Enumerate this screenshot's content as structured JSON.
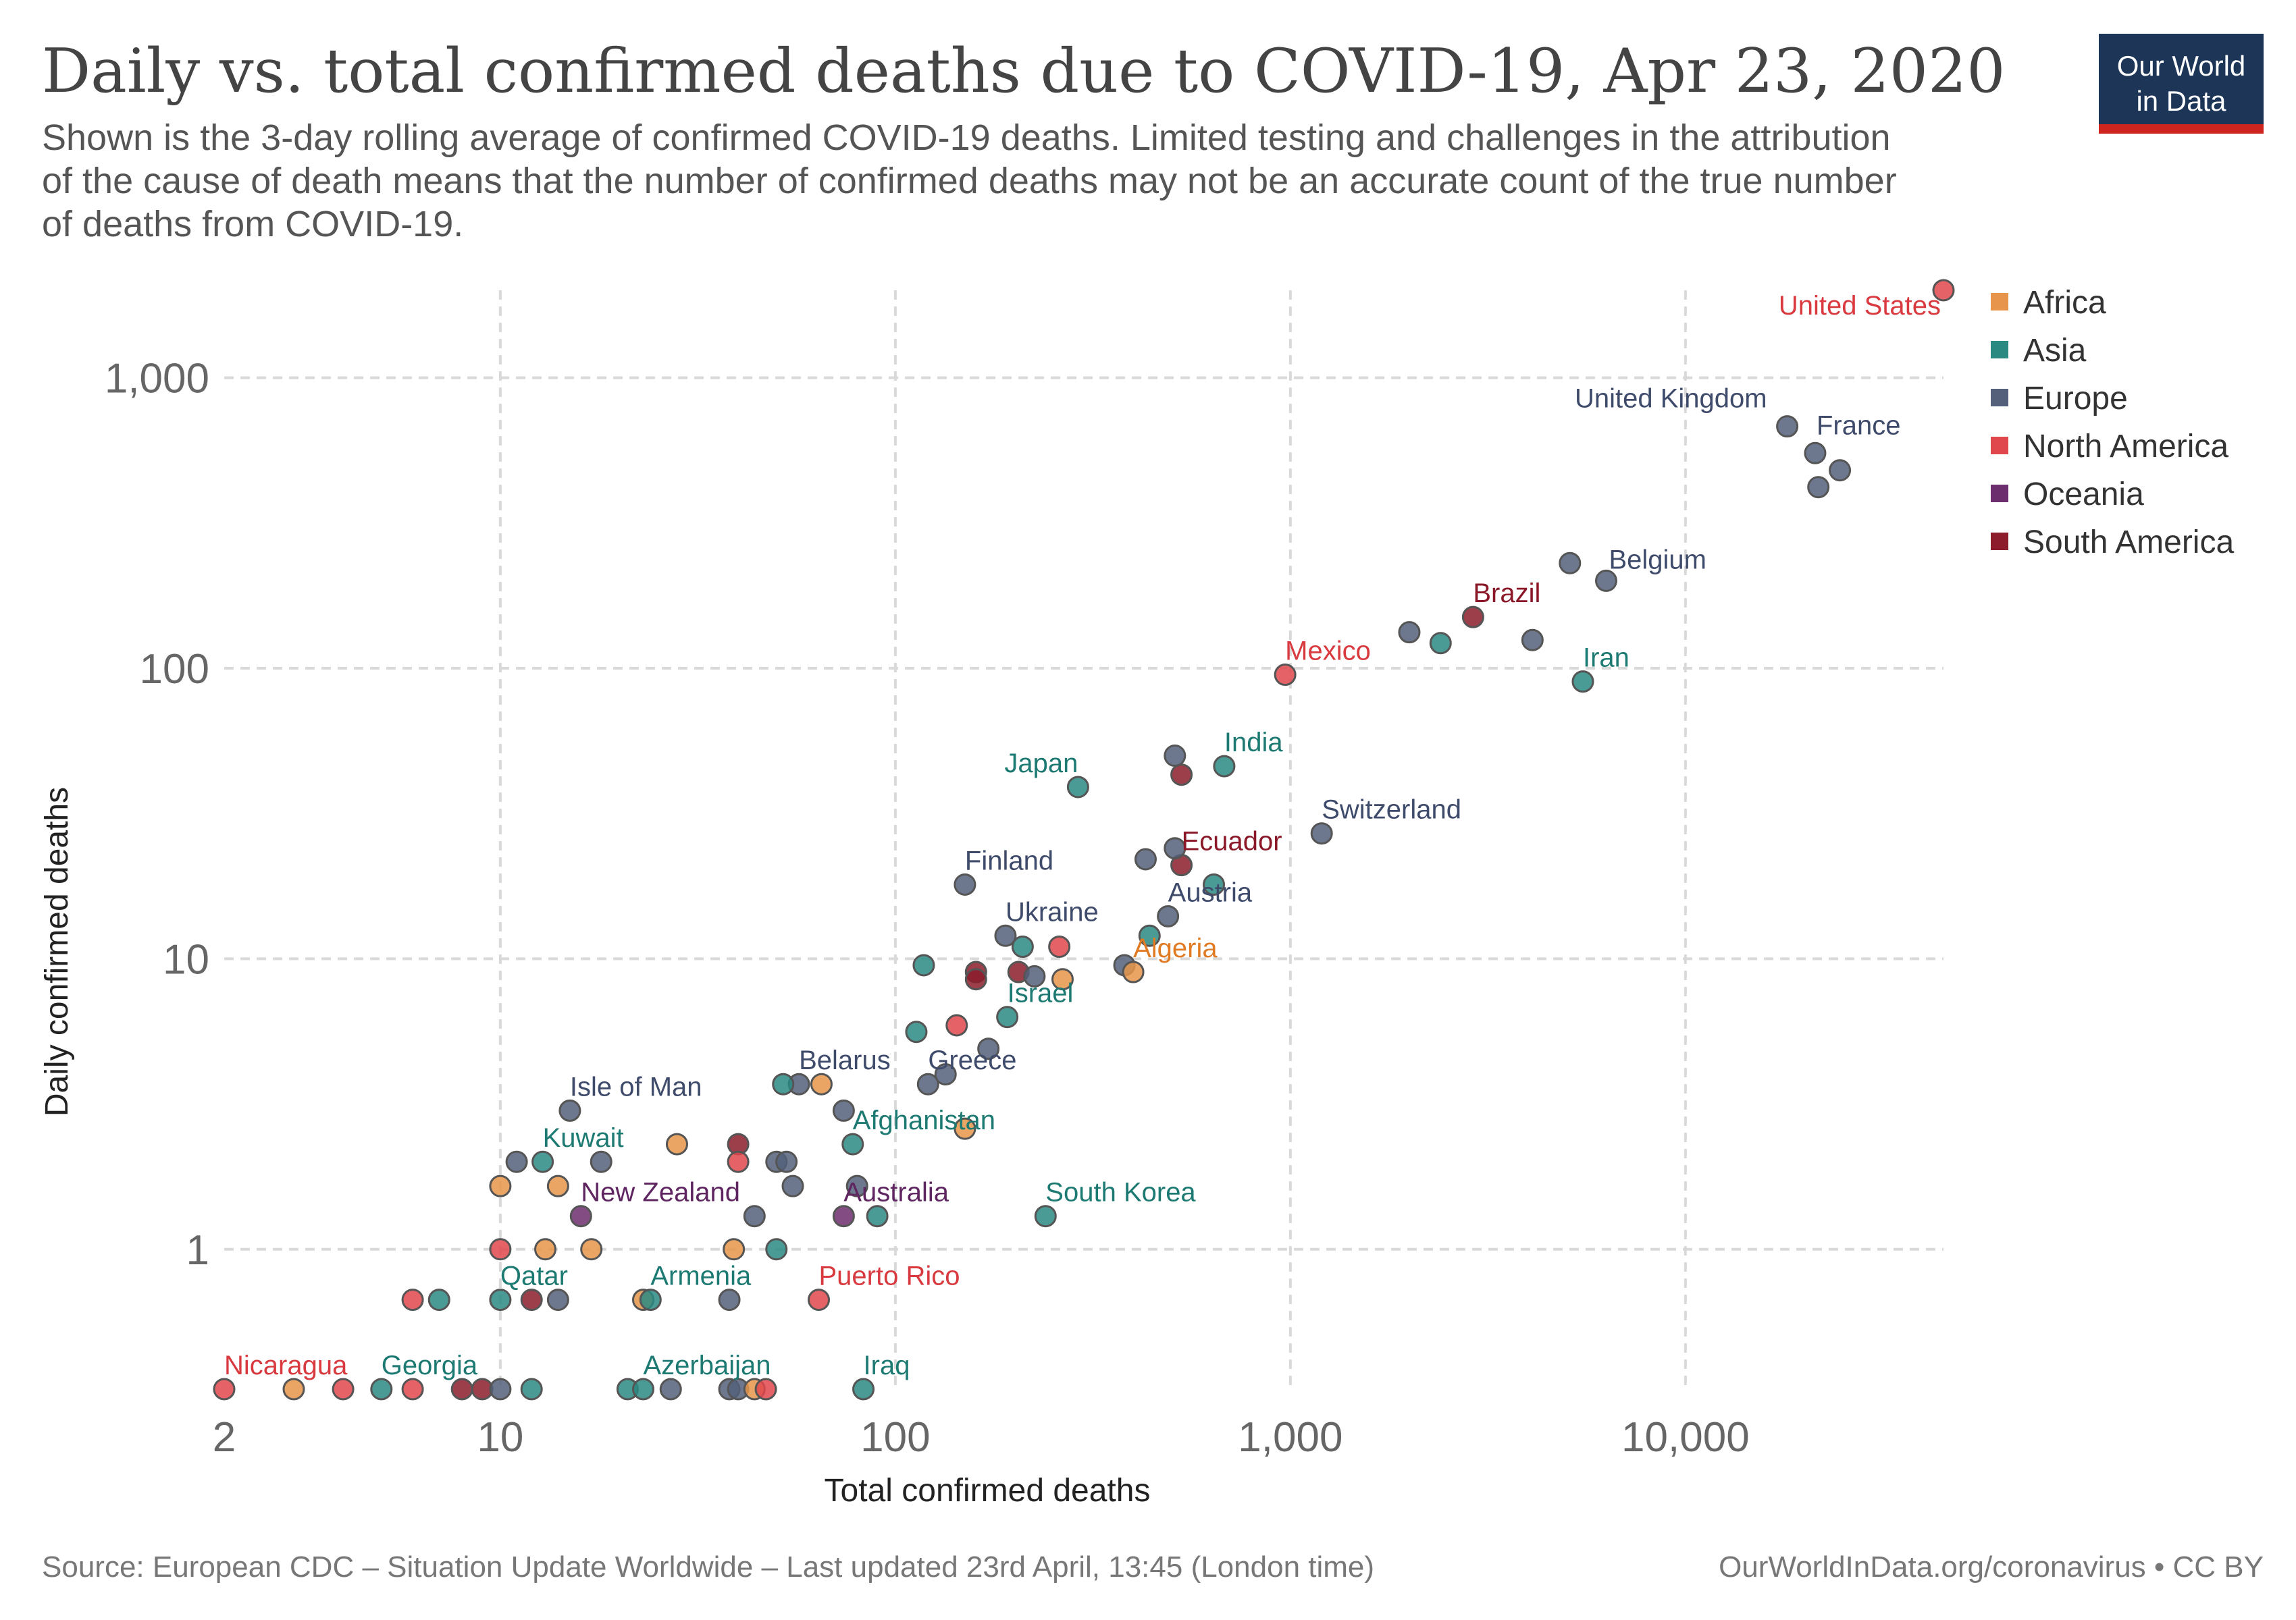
{
  "title": "Daily vs. total confirmed deaths due to COVID-19, Apr 23, 2020",
  "subtitle_lines": [
    "Shown is the 3-day rolling average of confirmed COVID-19 deaths. Limited testing and challenges in the attribution",
    "of the cause of death means that the number of confirmed deaths may not be an accurate count of the true number",
    "of deaths from COVID-19."
  ],
  "logo": {
    "line1": "Our World",
    "line2": "in Data",
    "bg": "#1d3557",
    "accent": "#ce261e"
  },
  "footer": {
    "source": "Source: European CDC – Situation Update Worldwide – Last updated 23rd April, 13:45 (London time)",
    "license": "OurWorldInData.org/coronavirus • CC BY"
  },
  "colors": {
    "Africa": "#e6954a",
    "Asia": "#2a8a82",
    "Europe": "#54607a",
    "North America": "#e0474c",
    "Oceania": "#6d2e6e",
    "South America": "#8c1c2c"
  },
  "label_colors": {
    "Africa": "#e07b24",
    "Asia": "#1d7a72",
    "Europe": "#3f4b6b",
    "North America": "#d83a3f",
    "Oceania": "#5e2560",
    "South America": "#8a1829"
  },
  "chart_data": {
    "type": "scatter",
    "title": "Daily vs. total confirmed deaths due to COVID-19, Apr 23, 2020",
    "xlabel": "Total confirmed deaths",
    "ylabel": "Daily confirmed deaths",
    "x_scale": "log",
    "y_scale": "log",
    "xlim": [
      2,
      45000
    ],
    "ylim": [
      0.33,
      2000
    ],
    "x_ticks": [
      2,
      10,
      100,
      1000,
      10000
    ],
    "x_tick_labels": [
      "2",
      "10",
      "100",
      "1,000",
      "10,000"
    ],
    "y_ticks": [
      1,
      10,
      100,
      1000
    ],
    "y_tick_labels": [
      "1",
      "10",
      "100",
      "1,000"
    ],
    "grid": true,
    "legend_position": "right",
    "legend": [
      "Africa",
      "Asia",
      "Europe",
      "North America",
      "Oceania",
      "South America"
    ],
    "points": [
      {
        "label": "United States",
        "continent": "North America",
        "x": 45000,
        "y": 2000
      },
      {
        "label": "United Kingdom",
        "continent": "Europe",
        "x": 18100,
        "y": 680
      },
      {
        "label": "France",
        "continent": "Europe",
        "x": 21300,
        "y": 550
      },
      {
        "label": "",
        "continent": "Europe",
        "x": 24600,
        "y": 480
      },
      {
        "label": "",
        "continent": "Europe",
        "x": 21700,
        "y": 420
      },
      {
        "label": "Belgium",
        "continent": "Europe",
        "x": 6300,
        "y": 200
      },
      {
        "label": "",
        "continent": "Europe",
        "x": 5100,
        "y": 230
      },
      {
        "label": "Brazil",
        "continent": "South America",
        "x": 2900,
        "y": 150
      },
      {
        "label": "",
        "continent": "Europe",
        "x": 4100,
        "y": 125
      },
      {
        "label": "",
        "continent": "Europe",
        "x": 2000,
        "y": 133
      },
      {
        "label": "",
        "continent": "Asia",
        "x": 2400,
        "y": 122
      },
      {
        "label": "Mexico",
        "continent": "North America",
        "x": 970,
        "y": 95
      },
      {
        "label": "Iran",
        "continent": "Asia",
        "x": 5500,
        "y": 90
      },
      {
        "label": "India",
        "continent": "Asia",
        "x": 680,
        "y": 46
      },
      {
        "label": "",
        "continent": "Europe",
        "x": 510,
        "y": 50
      },
      {
        "label": "",
        "continent": "South America",
        "x": 530,
        "y": 43
      },
      {
        "label": "Japan",
        "continent": "Asia",
        "x": 290,
        "y": 39
      },
      {
        "label": "Switzerland",
        "continent": "Europe",
        "x": 1200,
        "y": 27
      },
      {
        "label": "Ecuador",
        "continent": "South America",
        "x": 530,
        "y": 21
      },
      {
        "label": "",
        "continent": "Europe",
        "x": 510,
        "y": 24
      },
      {
        "label": "",
        "continent": "Europe",
        "x": 430,
        "y": 22
      },
      {
        "label": "",
        "continent": "Asia",
        "x": 640,
        "y": 18
      },
      {
        "label": "Finland",
        "continent": "Europe",
        "x": 150,
        "y": 18
      },
      {
        "label": "Austria",
        "continent": "Europe",
        "x": 490,
        "y": 14
      },
      {
        "label": "",
        "continent": "Asia",
        "x": 440,
        "y": 12
      },
      {
        "label": "Ukraine",
        "continent": "Europe",
        "x": 190,
        "y": 12
      },
      {
        "label": "",
        "continent": "North America",
        "x": 260,
        "y": 11
      },
      {
        "label": "",
        "continent": "Asia",
        "x": 210,
        "y": 11
      },
      {
        "label": "",
        "continent": "Asia",
        "x": 118,
        "y": 9.5
      },
      {
        "label": "",
        "continent": "Europe",
        "x": 380,
        "y": 9.5
      },
      {
        "label": "Algeria",
        "continent": "Africa",
        "x": 400,
        "y": 9
      },
      {
        "label": "",
        "continent": "South America",
        "x": 160,
        "y": 9
      },
      {
        "label": "",
        "continent": "South America",
        "x": 205,
        "y": 9
      },
      {
        "label": "",
        "continent": "Europe",
        "x": 225,
        "y": 8.7
      },
      {
        "label": "",
        "continent": "South America",
        "x": 160,
        "y": 8.5
      },
      {
        "label": "",
        "continent": "Africa",
        "x": 265,
        "y": 8.5
      },
      {
        "label": "Israel",
        "continent": "Asia",
        "x": 192,
        "y": 6.3
      },
      {
        "label": "",
        "continent": "North America",
        "x": 143,
        "y": 5.9
      },
      {
        "label": "",
        "continent": "Asia",
        "x": 113,
        "y": 5.6
      },
      {
        "label": "",
        "continent": "Europe",
        "x": 172,
        "y": 4.9
      },
      {
        "label": "Greece",
        "continent": "Europe",
        "x": 121,
        "y": 3.7
      },
      {
        "label": "",
        "continent": "Europe",
        "x": 134,
        "y": 4.0
      },
      {
        "label": "Belarus",
        "continent": "Europe",
        "x": 57,
        "y": 3.7
      },
      {
        "label": "",
        "continent": "Asia",
        "x": 52,
        "y": 3.7
      },
      {
        "label": "",
        "continent": "Africa",
        "x": 65,
        "y": 3.7
      },
      {
        "label": "Isle of Man",
        "continent": "Europe",
        "x": 15,
        "y": 3.0
      },
      {
        "label": "",
        "continent": "Europe",
        "x": 74,
        "y": 3.0
      },
      {
        "label": "Afghanistan",
        "continent": "Asia",
        "x": 78,
        "y": 2.3
      },
      {
        "label": "",
        "continent": "South America",
        "x": 40,
        "y": 2.3
      },
      {
        "label": "",
        "continent": "Africa",
        "x": 28,
        "y": 2.3
      },
      {
        "label": "",
        "continent": "Africa",
        "x": 150,
        "y": 2.6
      },
      {
        "label": "Kuwait",
        "continent": "Asia",
        "x": 12.8,
        "y": 2.0
      },
      {
        "label": "",
        "continent": "Europe",
        "x": 11,
        "y": 2.0
      },
      {
        "label": "",
        "continent": "Europe",
        "x": 18,
        "y": 2.0
      },
      {
        "label": "",
        "continent": "North America",
        "x": 40,
        "y": 2.0
      },
      {
        "label": "",
        "continent": "Europe",
        "x": 50,
        "y": 2.0
      },
      {
        "label": "",
        "continent": "Europe",
        "x": 53,
        "y": 2.0
      },
      {
        "label": "",
        "continent": "Africa",
        "x": 10,
        "y": 1.65
      },
      {
        "label": "",
        "continent": "Africa",
        "x": 14,
        "y": 1.65
      },
      {
        "label": "",
        "continent": "Europe",
        "x": 55,
        "y": 1.65
      },
      {
        "label": "",
        "continent": "Europe",
        "x": 80,
        "y": 1.65
      },
      {
        "label": "New Zealand",
        "continent": "Oceania",
        "x": 16,
        "y": 1.3
      },
      {
        "label": "Australia",
        "continent": "Oceania",
        "x": 74,
        "y": 1.3
      },
      {
        "label": "",
        "continent": "Europe",
        "x": 44,
        "y": 1.3
      },
      {
        "label": "",
        "continent": "Asia",
        "x": 90,
        "y": 1.3
      },
      {
        "label": "South Korea",
        "continent": "Asia",
        "x": 240,
        "y": 1.3
      },
      {
        "label": "",
        "continent": "North America",
        "x": 10,
        "y": 1.0
      },
      {
        "label": "",
        "continent": "Africa",
        "x": 13,
        "y": 1.0
      },
      {
        "label": "",
        "continent": "Africa",
        "x": 17,
        "y": 1.0
      },
      {
        "label": "",
        "continent": "Africa",
        "x": 39,
        "y": 1.0
      },
      {
        "label": "",
        "continent": "Asia",
        "x": 50,
        "y": 1.0
      },
      {
        "label": "Qatar",
        "continent": "Asia",
        "x": 10,
        "y": 0.67
      },
      {
        "label": "",
        "continent": "North America",
        "x": 6,
        "y": 0.67
      },
      {
        "label": "",
        "continent": "Asia",
        "x": 7,
        "y": 0.67
      },
      {
        "label": "",
        "continent": "South America",
        "x": 12,
        "y": 0.67
      },
      {
        "label": "",
        "continent": "Europe",
        "x": 14,
        "y": 0.67
      },
      {
        "label": "",
        "continent": "Africa",
        "x": 23,
        "y": 0.67
      },
      {
        "label": "Armenia",
        "continent": "Asia",
        "x": 24,
        "y": 0.67
      },
      {
        "label": "",
        "continent": "Europe",
        "x": 38,
        "y": 0.67
      },
      {
        "label": "Puerto Rico",
        "continent": "North America",
        "x": 64,
        "y": 0.67
      },
      {
        "label": "Nicaragua",
        "continent": "North America",
        "x": 2,
        "y": 0.33
      },
      {
        "label": "",
        "continent": "Africa",
        "x": 3,
        "y": 0.33
      },
      {
        "label": "",
        "continent": "North America",
        "x": 4,
        "y": 0.33
      },
      {
        "label": "Georgia",
        "continent": "Asia",
        "x": 5,
        "y": 0.33
      },
      {
        "label": "",
        "continent": "North America",
        "x": 6,
        "y": 0.33
      },
      {
        "label": "",
        "continent": "South America",
        "x": 8,
        "y": 0.33
      },
      {
        "label": "",
        "continent": "South America",
        "x": 9,
        "y": 0.33
      },
      {
        "label": "",
        "continent": "Europe",
        "x": 10,
        "y": 0.33
      },
      {
        "label": "",
        "continent": "Asia",
        "x": 12,
        "y": 0.33
      },
      {
        "label": "",
        "continent": "Asia",
        "x": 21,
        "y": 0.33
      },
      {
        "label": "Azerbaijan",
        "continent": "Asia",
        "x": 23,
        "y": 0.33
      },
      {
        "label": "",
        "continent": "Europe",
        "x": 27,
        "y": 0.33
      },
      {
        "label": "",
        "continent": "Europe",
        "x": 38,
        "y": 0.33
      },
      {
        "label": "",
        "continent": "Europe",
        "x": 40,
        "y": 0.33
      },
      {
        "label": "",
        "continent": "Africa",
        "x": 44,
        "y": 0.33
      },
      {
        "label": "",
        "continent": "North America",
        "x": 47,
        "y": 0.33
      },
      {
        "label": "Iraq",
        "continent": "Asia",
        "x": 83,
        "y": 0.33
      }
    ]
  }
}
